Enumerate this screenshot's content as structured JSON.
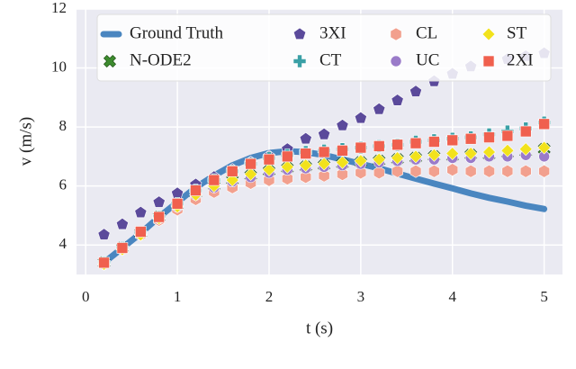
{
  "chart_data": {
    "type": "scatter",
    "xlabel": "t (s)",
    "ylabel": "v (m/s)",
    "xlim": [
      -0.1,
      5.2
    ],
    "ylim": [
      3,
      12
    ],
    "xticks": [
      0,
      1,
      2,
      3,
      4,
      5
    ],
    "yticks": [
      4,
      6,
      8,
      10,
      12
    ],
    "grid": true,
    "legend": "upper center",
    "legend_columns": 4,
    "x": [
      0.2,
      0.4,
      0.6,
      0.8,
      1.0,
      1.2,
      1.4,
      1.6,
      1.8,
      2.0,
      2.2,
      2.4,
      2.6,
      2.8,
      3.0,
      3.2,
      3.4,
      3.6,
      3.8,
      4.0,
      4.2,
      4.4,
      4.6,
      4.8,
      5.0
    ],
    "series": [
      {
        "name": "Ground Truth",
        "color": "#4a86c0",
        "marker": "line",
        "values": [
          3.4,
          3.9,
          4.4,
          4.95,
          5.45,
          5.95,
          6.35,
          6.7,
          6.95,
          7.12,
          7.18,
          7.15,
          7.05,
          6.9,
          6.75,
          6.6,
          6.42,
          6.25,
          6.08,
          5.92,
          5.75,
          5.6,
          5.47,
          5.33,
          5.22
        ]
      },
      {
        "name": "N-ODE2",
        "color": "#3d8a2e",
        "marker": "x",
        "values": [
          3.4,
          3.9,
          4.4,
          4.95,
          5.35,
          5.75,
          6.0,
          6.2,
          6.35,
          6.5,
          6.6,
          6.65,
          6.7,
          6.75,
          6.8,
          6.85,
          6.9,
          6.95,
          7.0,
          7.0,
          7.05,
          7.05,
          7.1,
          7.15,
          7.25
        ]
      },
      {
        "name": "3XI",
        "color": "#5b4a9b",
        "marker": "pentagon",
        "values": [
          4.35,
          4.7,
          5.1,
          5.45,
          5.75,
          6.05,
          6.3,
          6.55,
          6.8,
          7.0,
          7.25,
          7.6,
          7.75,
          8.05,
          8.3,
          8.6,
          8.9,
          9.2,
          9.55,
          9.8,
          10.05,
          10.2,
          10.3,
          10.4,
          10.5
        ]
      },
      {
        "name": "CT",
        "color": "#3aa0a6",
        "marker": "plus",
        "values": [
          3.4,
          3.9,
          4.4,
          4.95,
          5.4,
          5.85,
          6.2,
          6.5,
          6.75,
          6.95,
          7.05,
          7.15,
          7.2,
          7.25,
          7.3,
          7.35,
          7.4,
          7.5,
          7.55,
          7.6,
          7.65,
          7.75,
          7.85,
          7.95,
          8.15
        ]
      },
      {
        "name": "CL",
        "color": "#f2a08e",
        "marker": "hexagon",
        "values": [
          3.35,
          3.85,
          4.35,
          4.85,
          5.2,
          5.55,
          5.8,
          5.95,
          6.1,
          6.2,
          6.25,
          6.3,
          6.35,
          6.4,
          6.45,
          6.45,
          6.5,
          6.5,
          6.5,
          6.55,
          6.5,
          6.5,
          6.5,
          6.5,
          6.5
        ]
      },
      {
        "name": "UC",
        "color": "#9a7bc9",
        "marker": "circle",
        "values": [
          3.4,
          3.9,
          4.4,
          4.9,
          5.3,
          5.7,
          5.95,
          6.15,
          6.3,
          6.45,
          6.55,
          6.6,
          6.65,
          6.7,
          6.75,
          6.8,
          6.85,
          6.9,
          6.9,
          6.95,
          6.95,
          7.0,
          7.0,
          7.05,
          7.0
        ]
      },
      {
        "name": "ST",
        "color": "#f2e21c",
        "marker": "diamond",
        "values": [
          3.35,
          3.85,
          4.35,
          4.9,
          5.3,
          5.7,
          6.0,
          6.2,
          6.4,
          6.55,
          6.65,
          6.7,
          6.75,
          6.8,
          6.85,
          6.9,
          6.95,
          7.0,
          7.05,
          7.1,
          7.1,
          7.15,
          7.2,
          7.25,
          7.3
        ]
      },
      {
        "name": "2XI",
        "color": "#f0604e",
        "marker": "square",
        "values": [
          3.4,
          3.9,
          4.45,
          4.95,
          5.4,
          5.85,
          6.2,
          6.5,
          6.75,
          6.9,
          7.0,
          7.1,
          7.15,
          7.2,
          7.3,
          7.35,
          7.4,
          7.45,
          7.5,
          7.55,
          7.6,
          7.65,
          7.7,
          7.85,
          8.1
        ]
      }
    ]
  }
}
